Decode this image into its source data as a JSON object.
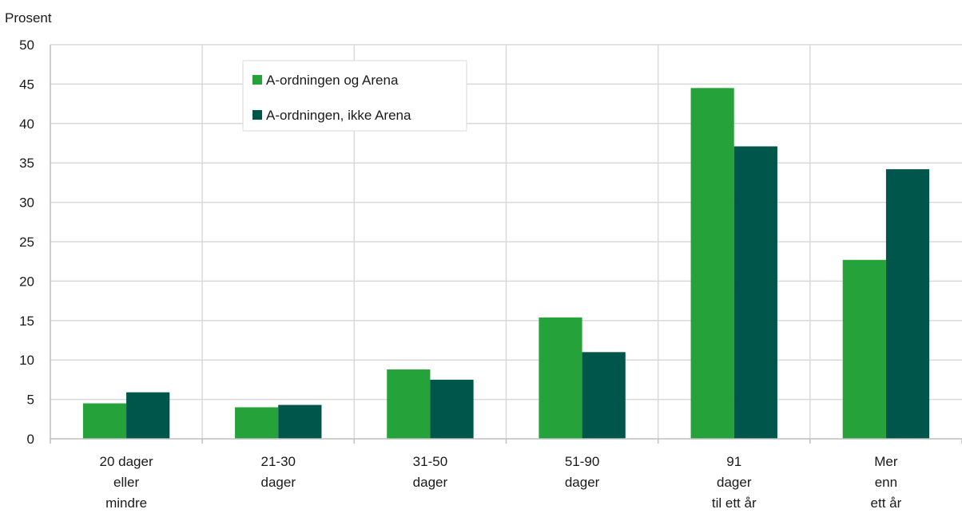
{
  "chart_data": {
    "type": "bar",
    "title": "",
    "xlabel": "",
    "ylabel": "Prosent",
    "ylim": [
      0,
      50
    ],
    "yticks": [
      0,
      5,
      10,
      15,
      20,
      25,
      30,
      35,
      40,
      45,
      50
    ],
    "grid": true,
    "legend_position": "top-left",
    "categories": [
      [
        "20 dager",
        "eller",
        "mindre"
      ],
      [
        "21-30",
        "dager"
      ],
      [
        "31-50",
        "dager"
      ],
      [
        "51-90",
        "dager"
      ],
      [
        "91",
        "dager",
        "til ett år"
      ],
      [
        "Mer",
        "enn",
        "ett år"
      ]
    ],
    "series": [
      {
        "name": "A-ordningen og Arena",
        "color": "#25a33a",
        "values": [
          4.5,
          4.0,
          8.8,
          15.4,
          44.5,
          22.7
        ]
      },
      {
        "name": "A-ordningen, ikke Arena",
        "color": "#00564a",
        "values": [
          5.9,
          4.3,
          7.5,
          11.0,
          37.1,
          34.2
        ]
      }
    ]
  }
}
